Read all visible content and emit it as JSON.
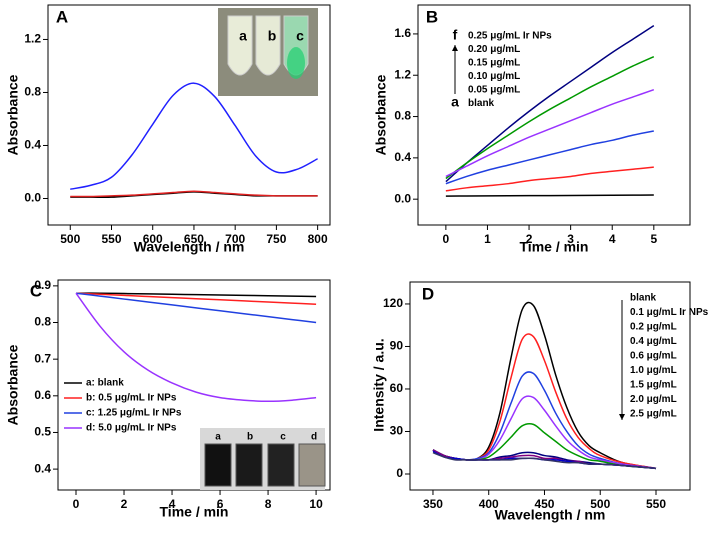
{
  "chart_data": [
    {
      "type": "line",
      "panel": "A",
      "xlabel": "Wavelength / nm",
      "ylabel": "Absorbance",
      "x": [
        500,
        525,
        550,
        575,
        600,
        625,
        650,
        675,
        700,
        725,
        750,
        775,
        800
      ],
      "series": [
        {
          "name": "a",
          "color": "#000000",
          "values": [
            0.01,
            0.01,
            0.01,
            0.02,
            0.03,
            0.04,
            0.05,
            0.04,
            0.03,
            0.02,
            0.02,
            0.02,
            0.02
          ]
        },
        {
          "name": "b",
          "color": "#e02020",
          "values": [
            0.015,
            0.015,
            0.02,
            0.025,
            0.035,
            0.045,
            0.055,
            0.045,
            0.035,
            0.025,
            0.02,
            0.02,
            0.02
          ]
        },
        {
          "name": "c",
          "color": "#2020ff",
          "values": [
            0.07,
            0.1,
            0.16,
            0.33,
            0.56,
            0.78,
            0.87,
            0.77,
            0.55,
            0.32,
            0.2,
            0.22,
            0.3
          ]
        }
      ],
      "xlim": [
        473,
        815
      ],
      "ylim": [
        -0.2,
        1.46
      ],
      "xticks": [
        500,
        550,
        600,
        650,
        700,
        750,
        800
      ],
      "yticks": [
        {
          "value": 0,
          "label": "0.0"
        },
        {
          "value": 0.4,
          "label": "0.4"
        },
        {
          "value": 0.8,
          "label": "0.8"
        },
        {
          "value": 1.2,
          "label": "1.2"
        }
      ],
      "inset_labels": [
        "a",
        "b",
        "c"
      ]
    },
    {
      "type": "line",
      "panel": "B",
      "xlabel": "Time / min",
      "ylabel": "Absorbance",
      "x": [
        0,
        0.5,
        1,
        1.5,
        2,
        2.5,
        3,
        3.5,
        4,
        4.5,
        5
      ],
      "series": [
        {
          "name": "0.25 μg/mL Ir NPs",
          "color": "#000080",
          "values": [
            0.17,
            0.35,
            0.52,
            0.69,
            0.85,
            1.0,
            1.14,
            1.28,
            1.42,
            1.55,
            1.68
          ]
        },
        {
          "name": "0.20 μg/mL",
          "color": "#009900",
          "values": [
            0.2,
            0.35,
            0.49,
            0.62,
            0.75,
            0.87,
            0.98,
            1.09,
            1.19,
            1.29,
            1.38
          ]
        },
        {
          "name": "0.15 μg/mL",
          "color": "#9933ff",
          "values": [
            0.22,
            0.32,
            0.42,
            0.51,
            0.6,
            0.68,
            0.76,
            0.84,
            0.92,
            0.99,
            1.06
          ]
        },
        {
          "name": "0.10 μg/mL",
          "color": "#2040e0",
          "values": [
            0.15,
            0.22,
            0.28,
            0.33,
            0.38,
            0.43,
            0.48,
            0.53,
            0.57,
            0.62,
            0.66
          ]
        },
        {
          "name": "0.05 μg/mL",
          "color": "#ff2020",
          "values": [
            0.08,
            0.11,
            0.13,
            0.15,
            0.18,
            0.2,
            0.22,
            0.25,
            0.27,
            0.29,
            0.31
          ]
        },
        {
          "name": "blank",
          "color": "#000000",
          "values": [
            0.03,
            0.031,
            0.032,
            0.033,
            0.034,
            0.035,
            0.036,
            0.037,
            0.038,
            0.039,
            0.04
          ]
        }
      ],
      "xlim": [
        -0.67,
        5.87
      ],
      "ylim": [
        -0.25,
        1.88
      ],
      "xticks": [
        0,
        1,
        2,
        3,
        4,
        5
      ],
      "yticks": [
        {
          "value": 0,
          "label": "0.0"
        },
        {
          "value": 0.4,
          "label": "0.4"
        },
        {
          "value": 0.8,
          "label": "0.8"
        },
        {
          "value": 1.2,
          "label": "1.2"
        },
        {
          "value": 1.6,
          "label": "1.6"
        }
      ],
      "annotations": [
        "f",
        "a"
      ]
    },
    {
      "type": "line",
      "panel": "C",
      "xlabel": "Time / min",
      "ylabel": "Absorbance",
      "x": [
        0,
        1,
        2,
        3,
        4,
        5,
        6,
        7,
        8,
        9,
        10
      ],
      "series": [
        {
          "name": "a: blank",
          "color": "#000000",
          "values": [
            0.88,
            0.88,
            0.879,
            0.878,
            0.877,
            0.876,
            0.875,
            0.874,
            0.873,
            0.872,
            0.871
          ]
        },
        {
          "name": "b: 0.5  μg/mL Ir NPs",
          "color": "#ff2020",
          "values": [
            0.88,
            0.877,
            0.874,
            0.871,
            0.868,
            0.865,
            0.862,
            0.859,
            0.856,
            0.853,
            0.85
          ]
        },
        {
          "name": "c: 1.25 μg/mL Ir NPs",
          "color": "#2040e0",
          "values": [
            0.88,
            0.872,
            0.864,
            0.856,
            0.848,
            0.84,
            0.832,
            0.824,
            0.816,
            0.808,
            0.8
          ]
        },
        {
          "name": "d: 5.0  μg/mL Ir NPs",
          "color": "#9933ff",
          "values": [
            0.88,
            0.79,
            0.72,
            0.67,
            0.635,
            0.61,
            0.595,
            0.588,
            0.585,
            0.588,
            0.595
          ]
        }
      ],
      "xlim": [
        -0.75,
        10.58
      ],
      "ylim": [
        0.343,
        0.916
      ],
      "xticks": [
        0,
        2,
        4,
        6,
        8,
        10
      ],
      "yticks": [
        0.4,
        0.5,
        0.6,
        0.7,
        0.8,
        0.9
      ],
      "inset_labels": [
        "a",
        "b",
        "c",
        "d"
      ]
    },
    {
      "type": "line",
      "panel": "D",
      "xlabel": "Wavelength / nm",
      "ylabel": "Intensity / a.u.",
      "x": [
        350,
        360,
        370,
        380,
        390,
        400,
        410,
        420,
        430,
        440,
        450,
        460,
        470,
        480,
        490,
        500,
        520,
        550
      ],
      "series": [
        {
          "name": "blank",
          "color": "#000000",
          "values": [
            17,
            13,
            11,
            10,
            11,
            19,
            43,
            82,
            116,
            119,
            98,
            70,
            47,
            30,
            20,
            15,
            8,
            4
          ]
        },
        {
          "name": "0.1 μg/mL Ir NPs",
          "color": "#ff2020",
          "values": [
            17,
            13,
            11,
            10,
            11,
            17,
            37,
            68,
            95,
            97,
            80,
            58,
            39,
            26,
            18,
            13,
            8,
            4
          ]
        },
        {
          "name": "0.2 μg/mL",
          "color": "#2040e0",
          "values": [
            17,
            13,
            11,
            10,
            11,
            15,
            29,
            50,
            69,
            71,
            59,
            43,
            30,
            20,
            14,
            11,
            7,
            4
          ]
        },
        {
          "name": "0.4 μg/mL",
          "color": "#9933ff",
          "values": [
            17,
            13,
            11,
            10,
            10,
            14,
            24,
            39,
            53,
            54,
            45,
            34,
            24,
            17,
            12,
            10,
            7,
            4
          ]
        },
        {
          "name": "0.6 μg/mL",
          "color": "#009900",
          "values": [
            17,
            13,
            11,
            10,
            10,
            12,
            18,
            26,
            34,
            35,
            29,
            23,
            17,
            13,
            10,
            9,
            6,
            4
          ]
        },
        {
          "name": "1.0 μg/mL",
          "color": "#000080",
          "values": [
            17,
            13,
            11,
            10,
            10,
            10,
            12,
            13,
            15,
            15,
            13,
            12,
            10,
            9,
            8,
            7,
            6,
            4
          ]
        },
        {
          "name": "1.5 μg/mL",
          "color": "#800080",
          "values": [
            17,
            13,
            11,
            10,
            10,
            10,
            11,
            12,
            13,
            13,
            11,
            11,
            9,
            9,
            7,
            7,
            6,
            4
          ]
        },
        {
          "name": "2.0 μg/mL",
          "color": "#0000cc",
          "values": [
            16,
            12,
            11,
            10,
            10,
            10,
            10,
            11,
            11,
            11,
            10,
            10,
            9,
            8,
            7,
            7,
            6,
            4
          ]
        },
        {
          "name": "2.5 μg/mL",
          "color": "#333366",
          "values": [
            15,
            12,
            10,
            10,
            10,
            10,
            10,
            10,
            11,
            11,
            10,
            9,
            8,
            8,
            7,
            7,
            6,
            4
          ]
        }
      ],
      "xlim": [
        329.4,
        580.5
      ],
      "ylim": [
        -11.3,
        135.5
      ],
      "xticks": [
        350,
        400,
        450,
        500,
        550
      ],
      "yticks": [
        0,
        30,
        60,
        90,
        120
      ]
    }
  ]
}
